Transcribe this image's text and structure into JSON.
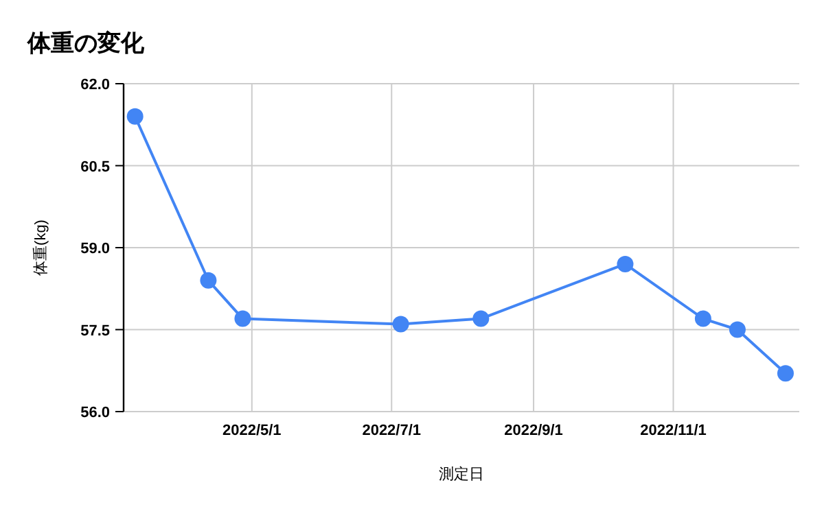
{
  "chart_data": {
    "type": "line",
    "title": "体重の変化",
    "xlabel": "測定日",
    "ylabel": "体重(kg)",
    "x": [
      "2022-03-11",
      "2022-04-12",
      "2022-04-27",
      "2022-07-05",
      "2022-08-09",
      "2022-10-11",
      "2022-11-14",
      "2022-11-29",
      "2022-12-20"
    ],
    "series": [
      {
        "color": "#4285f4",
        "values": [
          61.4,
          58.4,
          57.7,
          57.6,
          57.7,
          58.7,
          57.7,
          57.5,
          56.7
        ]
      }
    ],
    "xlim": [
      "2022-03-06",
      "2022-12-26"
    ],
    "xticks": [
      {
        "value": "2022-05-01",
        "label": "2022/5/1"
      },
      {
        "value": "2022-07-01",
        "label": "2022/7/1"
      },
      {
        "value": "2022-09-01",
        "label": "2022/9/1"
      },
      {
        "value": "2022-11-01",
        "label": "2022/11/1"
      }
    ],
    "ylim": [
      56,
      62
    ],
    "yticks": [
      {
        "value": 56,
        "label": "56.0"
      },
      {
        "value": 57.5,
        "label": "57.5"
      },
      {
        "value": 59,
        "label": "59.0"
      },
      {
        "value": 60.5,
        "label": "60.5"
      },
      {
        "value": 62,
        "label": "62.0"
      }
    ],
    "grid": true,
    "marker": "circle",
    "line_style": "solid"
  }
}
